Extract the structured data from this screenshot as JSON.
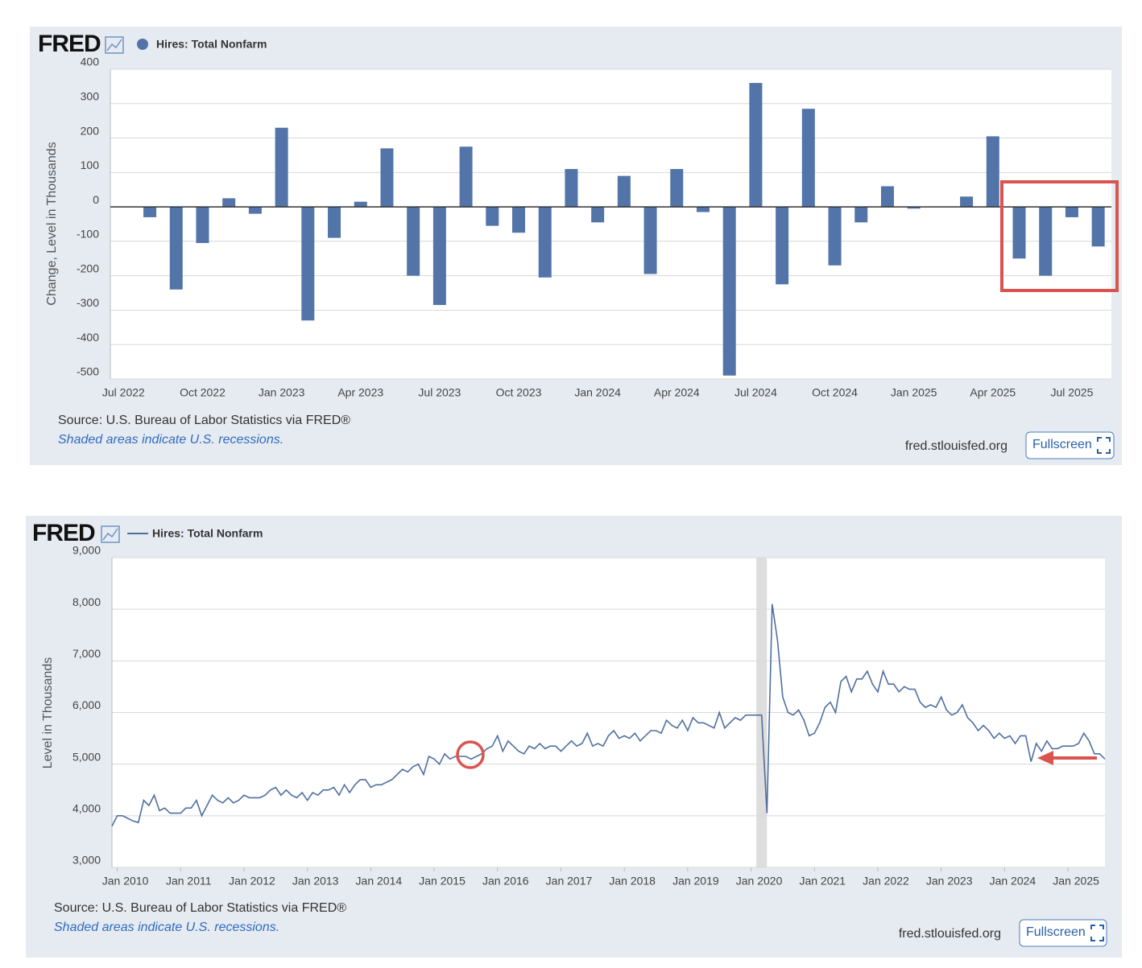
{
  "chart_data": [
    {
      "type": "bar",
      "brand": "FRED",
      "ylabel": "Change, Level in Thousands",
      "source": "Source: U.S. Bureau of Labor Statistics via FRED®",
      "note": "Shaded areas indicate U.S. recessions.",
      "site": "fred.stlouisfed.org",
      "button": "Fullscreen",
      "grid": true,
      "categories": [
        "Jul 2022",
        null,
        null,
        "Oct 2022",
        null,
        null,
        "Jan 2023",
        null,
        null,
        "Apr 2023",
        null,
        null,
        "Jul 2023",
        null,
        null,
        "Oct 2023",
        null,
        null,
        "Jan 2024",
        null,
        null,
        "Apr 2024",
        null,
        null,
        "Jul 2024",
        null,
        null,
        "Oct 2024",
        null,
        null,
        "Jan 2025",
        null,
        null,
        "Apr 2025",
        null,
        null,
        "Jul 2025",
        null
      ],
      "series": [
        {
          "name": "Hires: Total Nonfarm",
          "color": "#5274a8",
          "values": [
            null,
            -30,
            -240,
            -105,
            25,
            -20,
            230,
            -330,
            -90,
            15,
            170,
            -200,
            -285,
            175,
            -55,
            -75,
            -205,
            110,
            -45,
            90,
            -195,
            110,
            -15,
            -490,
            360,
            -225,
            285,
            -170,
            -45,
            60,
            -5,
            0,
            30,
            205,
            -150,
            -200,
            -30,
            -115
          ]
        }
      ],
      "ylim": [
        -500,
        400
      ],
      "yticks": [
        -500,
        -400,
        -300,
        -200,
        -100,
        0,
        100,
        200,
        300,
        400
      ]
    },
    {
      "type": "line",
      "brand": "FRED",
      "ylabel": "Level in Thousands",
      "source": "Source: U.S. Bureau of Labor Statistics via FRED®",
      "note": "Shaded areas indicate U.S. recessions.",
      "site": "fred.stlouisfed.org",
      "button": "Fullscreen",
      "grid": true,
      "recessions": [
        [
          "2020-02",
          "2020-04"
        ]
      ],
      "x": [
        "2009-12",
        "2010-01",
        "2010-02",
        "2010-03",
        "2010-04",
        "2010-05",
        "2010-06",
        "2010-07",
        "2010-08",
        "2010-09",
        "2010-10",
        "2010-11",
        "2010-12",
        "2011-01",
        "2011-02",
        "2011-03",
        "2011-04",
        "2011-05",
        "2011-06",
        "2011-07",
        "2011-08",
        "2011-09",
        "2011-10",
        "2011-11",
        "2011-12",
        "2012-01",
        "2012-02",
        "2012-03",
        "2012-04",
        "2012-05",
        "2012-06",
        "2012-07",
        "2012-08",
        "2012-09",
        "2012-10",
        "2012-11",
        "2012-12",
        "2013-01",
        "2013-02",
        "2013-03",
        "2013-04",
        "2013-05",
        "2013-06",
        "2013-07",
        "2013-08",
        "2013-09",
        "2013-10",
        "2013-11",
        "2013-12",
        "2014-01",
        "2014-02",
        "2014-03",
        "2014-04",
        "2014-05",
        "2014-06",
        "2014-07",
        "2014-08",
        "2014-09",
        "2014-10",
        "2014-11",
        "2014-12",
        "2015-01",
        "2015-02",
        "2015-03",
        "2015-04",
        "2015-05",
        "2015-06",
        "2015-07",
        "2015-08",
        "2015-09",
        "2015-10",
        "2015-11",
        "2015-12",
        "2016-01",
        "2016-02",
        "2016-03",
        "2016-04",
        "2016-05",
        "2016-06",
        "2016-07",
        "2016-08",
        "2016-09",
        "2016-10",
        "2016-11",
        "2016-12",
        "2017-01",
        "2017-02",
        "2017-03",
        "2017-04",
        "2017-05",
        "2017-06",
        "2017-07",
        "2017-08",
        "2017-09",
        "2017-10",
        "2017-11",
        "2017-12",
        "2018-01",
        "2018-02",
        "2018-03",
        "2018-04",
        "2018-05",
        "2018-06",
        "2018-07",
        "2018-08",
        "2018-09",
        "2018-10",
        "2018-11",
        "2018-12",
        "2019-01",
        "2019-02",
        "2019-03",
        "2019-04",
        "2019-05",
        "2019-06",
        "2019-07",
        "2019-08",
        "2019-09",
        "2019-10",
        "2019-11",
        "2019-12",
        "2020-01",
        "2020-02",
        "2020-03",
        "2020-04",
        "2020-05",
        "2020-06",
        "2020-07",
        "2020-08",
        "2020-09",
        "2020-10",
        "2020-11",
        "2020-12",
        "2021-01",
        "2021-02",
        "2021-03",
        "2021-04",
        "2021-05",
        "2021-06",
        "2021-07",
        "2021-08",
        "2021-09",
        "2021-10",
        "2021-11",
        "2021-12",
        "2022-01",
        "2022-02",
        "2022-03",
        "2022-04",
        "2022-05",
        "2022-06",
        "2022-07",
        "2022-08",
        "2022-09",
        "2022-10",
        "2022-11",
        "2022-12",
        "2023-01",
        "2023-02",
        "2023-03",
        "2023-04",
        "2023-05",
        "2023-06",
        "2023-07",
        "2023-08",
        "2023-09",
        "2023-10",
        "2023-11",
        "2023-12",
        "2024-01",
        "2024-02",
        "2024-03",
        "2024-04",
        "2024-05",
        "2024-06",
        "2024-07",
        "2024-08",
        "2024-09",
        "2024-10",
        "2024-11",
        "2024-12",
        "2025-01",
        "2025-02",
        "2025-03",
        "2025-04",
        "2025-05",
        "2025-06",
        "2025-07",
        "2025-08"
      ],
      "series": [
        {
          "name": "Hires: Total Nonfarm",
          "color": "#4f6fa0",
          "values": [
            3800,
            4000,
            4000,
            3950,
            3900,
            3870,
            4300,
            4200,
            4400,
            4100,
            4150,
            4050,
            4050,
            4050,
            4150,
            4150,
            4300,
            4000,
            4200,
            4400,
            4300,
            4250,
            4350,
            4250,
            4300,
            4400,
            4350,
            4350,
            4350,
            4400,
            4500,
            4550,
            4400,
            4500,
            4400,
            4350,
            4450,
            4300,
            4450,
            4400,
            4500,
            4500,
            4550,
            4400,
            4600,
            4450,
            4600,
            4700,
            4700,
            4550,
            4600,
            4600,
            4650,
            4700,
            4800,
            4900,
            4850,
            4950,
            5000,
            4800,
            5150,
            5100,
            5000,
            5200,
            5100,
            5150,
            5150,
            5150,
            5100,
            5150,
            5200,
            5300,
            5350,
            5550,
            5250,
            5450,
            5350,
            5250,
            5200,
            5350,
            5300,
            5400,
            5300,
            5350,
            5350,
            5250,
            5350,
            5450,
            5350,
            5400,
            5600,
            5350,
            5400,
            5350,
            5550,
            5650,
            5500,
            5550,
            5500,
            5600,
            5450,
            5550,
            5650,
            5650,
            5600,
            5850,
            5750,
            5700,
            5850,
            5650,
            5900,
            5800,
            5800,
            5750,
            5700,
            6000,
            5700,
            5800,
            5900,
            5850,
            5950,
            5950,
            5950,
            5950,
            4050,
            8100,
            7400,
            6300,
            6000,
            5950,
            6050,
            5850,
            5550,
            5600,
            5800,
            6100,
            6200,
            6000,
            6600,
            6700,
            6400,
            6650,
            6650,
            6800,
            6550,
            6400,
            6800,
            6550,
            6550,
            6400,
            6500,
            6450,
            6450,
            6200,
            6100,
            6150,
            6100,
            6300,
            6050,
            5950,
            6000,
            6150,
            5900,
            5800,
            5650,
            5750,
            5650,
            5500,
            5600,
            5500,
            5550,
            5400,
            5550,
            5550,
            5050,
            5400,
            5250,
            5450,
            5300,
            5300,
            5350,
            5350,
            5350,
            5400,
            5600,
            5450,
            5200,
            5200,
            5100
          ]
        }
      ],
      "xlim": [
        "2009-12",
        "2025-08"
      ],
      "xticks": [
        {
          "value": "2010-01",
          "label": "Jan 2010"
        },
        {
          "value": "2011-01",
          "label": "Jan 2011"
        },
        {
          "value": "2012-01",
          "label": "Jan 2012"
        },
        {
          "value": "2013-01",
          "label": "Jan 2013"
        },
        {
          "value": "2014-01",
          "label": "Jan 2014"
        },
        {
          "value": "2015-01",
          "label": "Jan 2015"
        },
        {
          "value": "2016-01",
          "label": "Jan 2016"
        },
        {
          "value": "2017-01",
          "label": "Jan 2017"
        },
        {
          "value": "2018-01",
          "label": "Jan 2018"
        },
        {
          "value": "2019-01",
          "label": "Jan 2019"
        },
        {
          "value": "2020-01",
          "label": "Jan 2020"
        },
        {
          "value": "2021-01",
          "label": "Jan 2021"
        },
        {
          "value": "2022-01",
          "label": "Jan 2022"
        },
        {
          "value": "2023-01",
          "label": "Jan 2023"
        },
        {
          "value": "2024-01",
          "label": "Jan 2024"
        },
        {
          "value": "2025-01",
          "label": "Jan 2025"
        }
      ],
      "ylim": [
        3000,
        9000
      ],
      "yticks": [
        {
          "value": 3000,
          "label": "3,000"
        },
        {
          "value": 4000,
          "label": "4,000"
        },
        {
          "value": 5000,
          "label": "5,000"
        },
        {
          "value": 6000,
          "label": "6,000"
        },
        {
          "value": 7000,
          "label": "7,000"
        },
        {
          "value": 8000,
          "label": "8,000"
        },
        {
          "value": 9000,
          "label": "9,000"
        }
      ]
    }
  ]
}
